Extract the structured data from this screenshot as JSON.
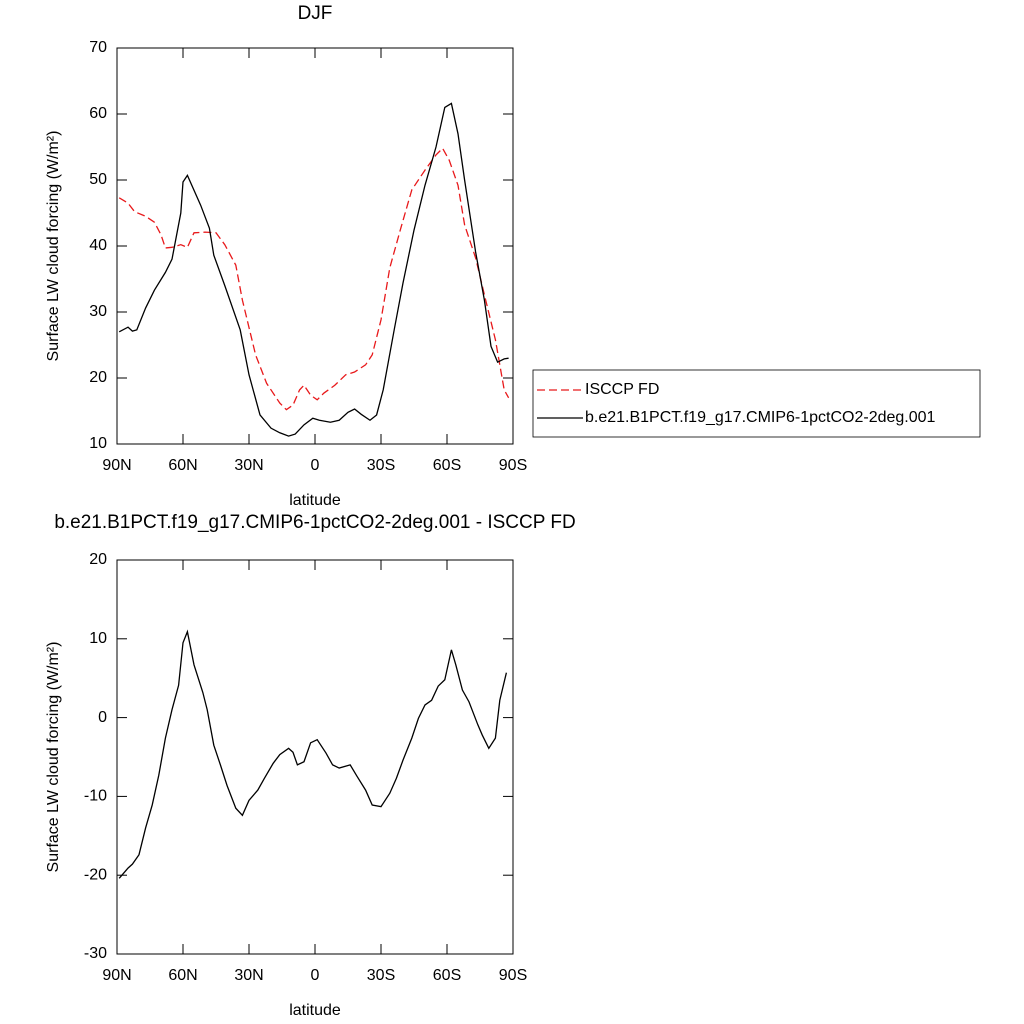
{
  "chart_data": [
    {
      "type": "line",
      "title": "DJF",
      "xlabel": "latitude",
      "ylabel": "Surface LW cloud forcing (W/m²)",
      "xlim": [
        90,
        -90
      ],
      "xticks": [
        {
          "value": 90,
          "label": "90N"
        },
        {
          "value": 60,
          "label": "60N"
        },
        {
          "value": 30,
          "label": "30N"
        },
        0,
        {
          "value": -30,
          "label": "30S"
        },
        {
          "value": -60,
          "label": "60S"
        },
        {
          "value": -90,
          "label": "90S"
        }
      ],
      "ylim": [
        10,
        70
      ],
      "yticks": [
        10,
        20,
        30,
        40,
        50,
        60,
        70
      ],
      "series": [
        {
          "name": "ISCCP FD",
          "color": "#e8191b",
          "style": "dashed",
          "x": [
            89,
            85,
            82,
            77,
            73,
            70,
            68,
            65,
            61,
            58,
            55,
            50,
            45,
            41,
            36,
            33,
            27,
            22,
            16,
            13,
            10,
            7,
            5,
            2,
            -1,
            -4,
            -9,
            -14,
            -18,
            -23,
            -26,
            -30,
            -34,
            -39,
            -44,
            -50,
            -55,
            -58,
            -61,
            -65,
            -68,
            -73,
            -77,
            -82,
            -86,
            -88
          ],
          "values": [
            47.3,
            46.5,
            45.2,
            44.5,
            43.6,
            41.7,
            39.7,
            39.8,
            40.2,
            39.8,
            42,
            42.1,
            42,
            40.2,
            37.1,
            31.8,
            23.5,
            19.2,
            16.2,
            15.2,
            15.9,
            18.2,
            18.9,
            17.4,
            16.7,
            17.7,
            18.9,
            20.5,
            20.9,
            22,
            23.5,
            28.8,
            36.7,
            42.7,
            48.5,
            51.5,
            53.8,
            54.8,
            53,
            49.2,
            43.2,
            38.2,
            32.6,
            25.8,
            18.2,
            17
          ]
        },
        {
          "name": "b.e21.B1PCT.f19_g17.CMIP6-1pctCO2-2deg.001",
          "color": "#000000",
          "style": "solid",
          "x": [
            89,
            85,
            83,
            81,
            77,
            73,
            68,
            65,
            61,
            60,
            58,
            52,
            48,
            46,
            41,
            34,
            30,
            25,
            20,
            16,
            12,
            9,
            5,
            1,
            -2,
            -7,
            -11,
            -15,
            -18,
            -21,
            -25,
            -28,
            -31,
            -36,
            -40,
            -45,
            -50,
            -55,
            -59,
            -62,
            -65,
            -68,
            -73,
            -77,
            -80,
            -83,
            -86,
            -88
          ],
          "values": [
            27,
            27.7,
            27.1,
            27.3,
            30.6,
            33.3,
            36,
            38,
            45,
            49.7,
            50.7,
            46.2,
            42.7,
            38.6,
            34,
            27.3,
            20.5,
            14.4,
            12.4,
            11.7,
            11.2,
            11.5,
            12.9,
            13.9,
            13.6,
            13.3,
            13.6,
            14.8,
            15.3,
            14.5,
            13.6,
            14.4,
            18.2,
            27.3,
            34.4,
            42.4,
            49.2,
            55,
            61,
            61.6,
            57,
            50,
            39.1,
            31.8,
            24.8,
            22.4,
            22.9,
            23
          ]
        }
      ]
    },
    {
      "type": "line",
      "title": "b.e21.B1PCT.f19_g17.CMIP6-1pctCO2-2deg.001 - ISCCP FD",
      "xlabel": "latitude",
      "ylabel": "Surface LW cloud forcing (W/m²)",
      "xlim": [
        90,
        -90
      ],
      "xticks": [
        {
          "value": 90,
          "label": "90N"
        },
        {
          "value": 60,
          "label": "60N"
        },
        {
          "value": 30,
          "label": "30N"
        },
        0,
        {
          "value": -30,
          "label": "30S"
        },
        {
          "value": -60,
          "label": "60S"
        },
        {
          "value": -90,
          "label": "90S"
        }
      ],
      "ylim": [
        -30,
        20
      ],
      "yticks": [
        -30,
        -20,
        -10,
        0,
        10,
        20
      ],
      "series": [
        {
          "color": "#000000",
          "style": "solid",
          "x": [
            89,
            85,
            83,
            80,
            77,
            74,
            71,
            68,
            65,
            62,
            60,
            58,
            55,
            51,
            49,
            46,
            43,
            40,
            36,
            33,
            30,
            26,
            23,
            19,
            16,
            12,
            10,
            8,
            5,
            2,
            -1,
            -5,
            -8,
            -11,
            -16,
            -19,
            -23,
            -26,
            -30,
            -34,
            -37,
            -40,
            -44,
            -47,
            -50,
            -53,
            -56,
            -59,
            -62,
            -64,
            -67,
            -70,
            -74,
            -76,
            -79,
            -82,
            -84,
            -87
          ],
          "values": [
            -20.4,
            -19.1,
            -18.6,
            -17.4,
            -14,
            -11.1,
            -7.3,
            -2.6,
            1,
            4.1,
            9.5,
            10.9,
            6.7,
            3.2,
            1,
            -3.5,
            -6,
            -8.6,
            -11.5,
            -12.4,
            -10.5,
            -9.2,
            -7.7,
            -5.8,
            -4.7,
            -3.9,
            -4.4,
            -6,
            -5.6,
            -3.2,
            -2.8,
            -4.5,
            -6,
            -6.4,
            -6,
            -7.4,
            -9.2,
            -11.1,
            -11.3,
            -9.6,
            -7.7,
            -5.4,
            -2.6,
            -0.1,
            1.6,
            2.2,
            4,
            4.8,
            8.6,
            6.7,
            3.5,
            2,
            -0.9,
            -2.2,
            -3.9,
            -2.6,
            2.2,
            5.7
          ]
        }
      ]
    }
  ]
}
